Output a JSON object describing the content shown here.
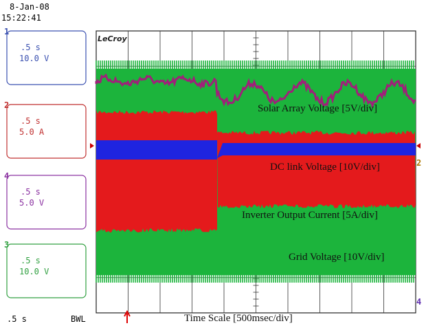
{
  "header": {
    "date": "8-Jan-08",
    "time": "15:22:41"
  },
  "brand": "LeCroy",
  "channels": [
    {
      "number": "1",
      "timebase": ".5 s",
      "scale": "10.0 V"
    },
    {
      "number": "2",
      "timebase": ".5 s",
      "scale": "5.0 A"
    },
    {
      "number": "4",
      "timebase": ".5 s",
      "scale": "5.0 V"
    },
    {
      "number": "3",
      "timebase": ".5 s",
      "scale": "10.0 V"
    }
  ],
  "footer": {
    "timebase": ".5 s",
    "bandwidth": "BWL"
  },
  "annotations": [
    "Solar Array Voltage [5V/div]",
    "DC link Voltage [10V/div]",
    "Inverter Output Current [5A/div]",
    "Grid Voltage [10V/div]"
  ],
  "time_scale": "Time Scale [500msec/div]",
  "markers": [
    "2",
    "4"
  ]
}
